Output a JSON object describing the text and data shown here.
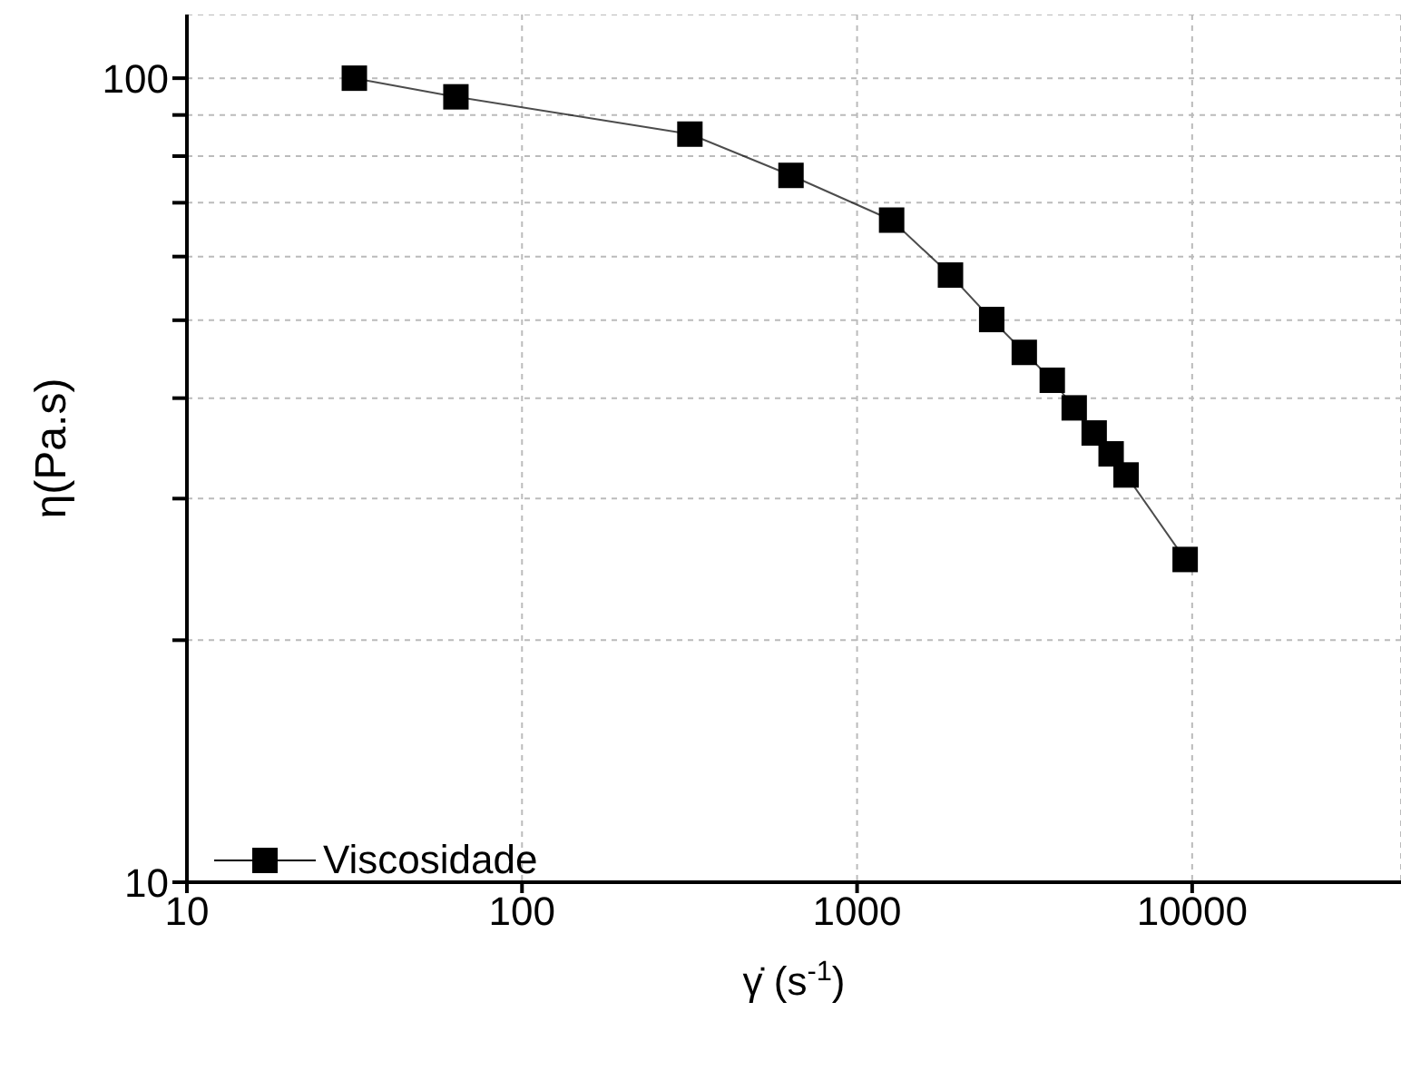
{
  "chart_data": {
    "type": "line",
    "xlabel": "γ̇ (s$^{-1}$)",
    "ylabel": "η(Pa.s)",
    "x": [
      31.6,
      63.5,
      317,
      635,
      1268,
      1900,
      2522,
      3155,
      3824,
      4446,
      5100,
      5730,
      6350,
      9530
    ],
    "series": [
      {
        "name": "Viscosidade",
        "color": "#000000",
        "values": [
          100,
          94.8,
          85.2,
          75.7,
          66.6,
          56.9,
          50.1,
          45.6,
          42.1,
          38.9,
          36.2,
          34.1,
          32.1,
          25.2
        ]
      }
    ],
    "log": "xy",
    "xlim": [
      10,
      42000
    ],
    "ylim": [
      10,
      120
    ],
    "xticks": [
      10,
      100,
      1000,
      10000
    ],
    "yticks": [
      10,
      {
        "value": 20,
        "label": null
      },
      {
        "value": 30,
        "label": null
      },
      {
        "value": 40,
        "label": null
      },
      {
        "value": 50,
        "label": null
      },
      {
        "value": 60,
        "label": null
      },
      {
        "value": 70,
        "label": null
      },
      {
        "value": 80,
        "label": null
      },
      {
        "value": 90,
        "label": null
      },
      100
    ],
    "grid": true,
    "legend": "bottom left",
    "marker": "square",
    "line_style": "solid"
  }
}
